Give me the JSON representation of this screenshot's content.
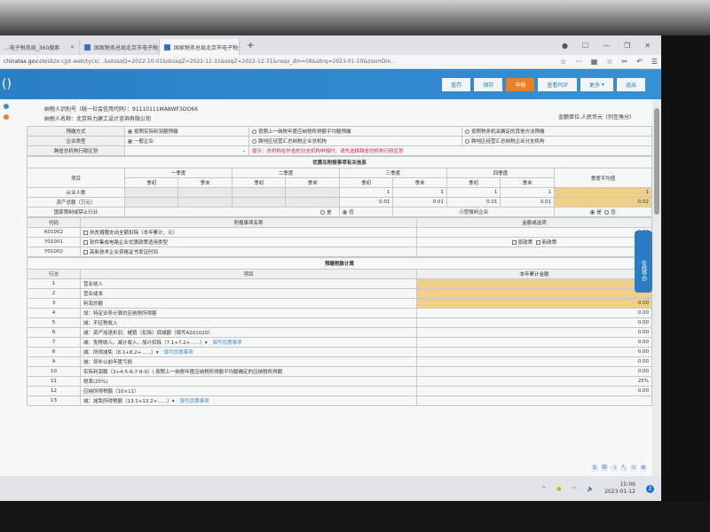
{
  "browser": {
    "tabs": [
      {
        "title": "...电子税务局_360搜索"
      },
      {
        "title": "国家税务总局北京市电子税务局"
      },
      {
        "title": "国家税务总局北京市电子税务局"
      }
    ],
    "url_domain": "chinatax.gov.cn",
    "url_path": "/sbzx-cjpt-web/tycx/...&skssqQ=2022-10-01&skssqZ=2022-12-31&ssqZ=2022-12-31&nsqx_dm=08&sbrq=2023-01-10&zsxmDm..."
  },
  "header": {
    "brand": "()",
    "buttons": {
      "temp_save": "暂存",
      "save": "保存",
      "submit": "申报",
      "view_pdf": "查看PDF",
      "more": "更多",
      "exit": "退出"
    }
  },
  "taxpayer": {
    "id_label": "纳税人识别号（统一社会信用代码）：",
    "id": "91110111MA8WF3DO6X",
    "name_label": "纳税人名称：",
    "name": "北京科力建工设计咨询有限公司",
    "unit": "金额单位:人民币元（列至角分）"
  },
  "basic": {
    "prepay_label": "预缴方式",
    "prepay_opts": [
      "按照实际利润额预缴",
      "按照上一纳税年度应纳税所得额平均额预缴",
      "按照税务机关确定的其他方法预缴"
    ],
    "type_label": "企业类型",
    "type_opts": [
      "一般企业",
      "跨地区经营汇总纳税企业总机构",
      "跨地区经营汇总纳税企业分支机构"
    ],
    "region_label": "跨省总机构行政区划",
    "hint": "提示：总机构在外省的分支机构申报时，请先选择跨省总机构行政区划"
  },
  "preferential": {
    "title": "优惠及附报事项有关信息",
    "item": "项目",
    "quarters": [
      "一季度",
      "二季度",
      "三季度",
      "四季度"
    ],
    "start": "季初",
    "end": "季末",
    "avg": "季度平均值",
    "employees_label": "从业人数",
    "employees": [
      "",
      "",
      "",
      "",
      "1",
      "1",
      "1",
      "1"
    ],
    "employees_avg": "1",
    "assets_label": "资产总额（万元）",
    "assets": [
      "",
      "",
      "",
      "",
      "0.01",
      "0.01",
      "0.01",
      "0.01"
    ],
    "assets_avg": "0.02",
    "restricted_label": "国家限制或禁止行业",
    "yes": "是",
    "no": "否",
    "small_label": "小型微利企业"
  },
  "addenda": {
    "code_h": "代码",
    "name_h": "附报事项名称",
    "value_h": "金额或选项",
    "rows": [
      {
        "code": "K01002",
        "name": "扶贫捐赠支出全额扣除（本年累计，元）",
        "value": "0.00"
      },
      {
        "code": "Y01001",
        "name": "软件集成电路企业优惠政策适用类型",
        "opt1": "原政策",
        "opt2": "新政策"
      },
      {
        "code": "Y01002",
        "name": "高新技术企业资格证书发证时间",
        "value": ""
      }
    ]
  },
  "calc": {
    "title": "预缴税款计算",
    "line_h": "行次",
    "item_h": "项目",
    "amount_h": "本年累计金额",
    "link": "填写优惠事项",
    "rows": [
      {
        "n": "1",
        "item": "营业收入",
        "v": "0.00",
        "yel": true
      },
      {
        "n": "2",
        "item": "营业成本",
        "v": "",
        "yel": true
      },
      {
        "n": "3",
        "item": "利润总额",
        "v": "0.00",
        "yel": true
      },
      {
        "n": "4",
        "item": "加：特定业务计算的应纳税所得额",
        "v": "0.00"
      },
      {
        "n": "5",
        "item": "减：不征税收入",
        "v": "0.00"
      },
      {
        "n": "6",
        "item": "减：资产加速折旧、摊销（扣除）调减额（填写A201020）",
        "v": "0.00"
      },
      {
        "n": "7",
        "item": "减：免税收入、减计收入、加计扣除（7.1+7.2+……）▾",
        "v": "0.00",
        "link": true
      },
      {
        "n": "8",
        "item": "减：所得减免（8.1+8.2+……）▾",
        "v": "0.00",
        "link": true
      },
      {
        "n": "9",
        "item": "减：弥补以前年度亏损",
        "v": "0.00"
      },
      {
        "n": "10",
        "item": "实际利润额（3+4-5-6-7-8-9）\\ 按照上一纳税年度应纳税所得额平均额确定的应纳税所得额",
        "v": "0.00"
      },
      {
        "n": "11",
        "item": "税率(25%)",
        "v": "25%"
      },
      {
        "n": "12",
        "item": "应纳所得税额（10×11）",
        "v": "0.00"
      },
      {
        "n": "13",
        "item": "减：减免所得税额（13.1+13.2+……）▾",
        "v": "",
        "link": true
      }
    ]
  },
  "helper": "在线导办",
  "taskbar": {
    "time": "15:06",
    "date": "2023-01-12",
    "notifications": "2"
  },
  "colors": {
    "header": "#2a7fc6",
    "submit": "#e8802a",
    "highlight": "#f0cf88",
    "hint": "#d9263f"
  }
}
